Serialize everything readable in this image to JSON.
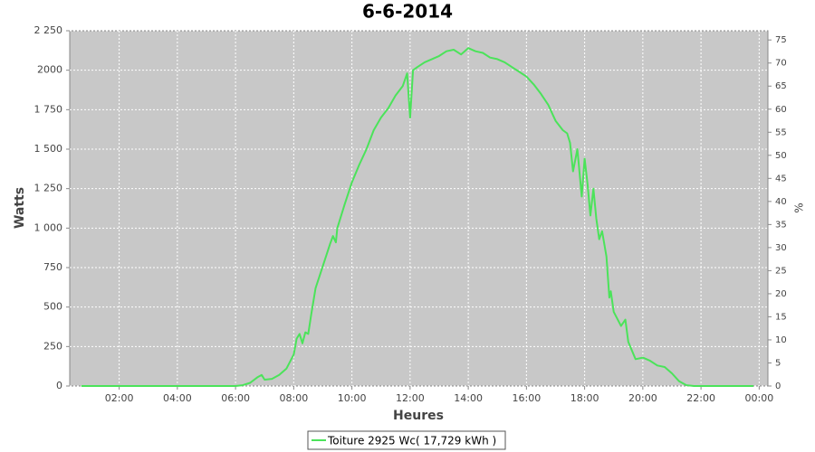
{
  "chart_data": {
    "type": "line",
    "title": "6-6-2014",
    "x_label": "Heures",
    "y_label": "Watts",
    "y2_label": "%",
    "x": [
      0.7,
      5.5,
      6.0,
      6.25,
      6.5,
      6.75,
      6.9,
      7.0,
      7.25,
      7.5,
      7.75,
      8.0,
      8.1,
      8.2,
      8.3,
      8.4,
      8.5,
      8.6,
      8.75,
      9.0,
      9.25,
      9.35,
      9.45,
      9.5,
      9.75,
      10.0,
      10.25,
      10.5,
      10.75,
      11.0,
      11.25,
      11.5,
      11.75,
      11.9,
      12.0,
      12.1,
      12.25,
      12.5,
      12.75,
      13.0,
      13.25,
      13.5,
      13.75,
      14.0,
      14.25,
      14.5,
      14.75,
      15.0,
      15.25,
      15.5,
      15.75,
      16.0,
      16.25,
      16.5,
      16.75,
      17.0,
      17.25,
      17.4,
      17.5,
      17.6,
      17.75,
      17.9,
      18.0,
      18.1,
      18.2,
      18.3,
      18.4,
      18.5,
      18.6,
      18.75,
      18.85,
      18.9,
      19.0,
      19.25,
      19.4,
      19.5,
      19.75,
      20.0,
      20.25,
      20.5,
      20.75,
      21.0,
      21.25,
      21.5,
      21.75,
      23.8
    ],
    "series": [
      {
        "name": "Toiture 2925 Wc( 17,729 kWh )",
        "color": "#4be35a",
        "values": [
          0,
          0,
          0,
          5,
          20,
          55,
          70,
          40,
          45,
          70,
          110,
          200,
          300,
          330,
          270,
          340,
          330,
          450,
          620,
          760,
          900,
          950,
          910,
          1000,
          1150,
          1290,
          1400,
          1500,
          1620,
          1700,
          1760,
          1840,
          1900,
          1980,
          1700,
          2000,
          2020,
          2050,
          2070,
          2090,
          2120,
          2130,
          2100,
          2140,
          2120,
          2110,
          2080,
          2070,
          2050,
          2020,
          1990,
          1960,
          1910,
          1850,
          1780,
          1680,
          1620,
          1600,
          1540,
          1360,
          1500,
          1200,
          1440,
          1280,
          1080,
          1250,
          1060,
          930,
          980,
          820,
          560,
          600,
          470,
          380,
          420,
          280,
          170,
          180,
          160,
          130,
          120,
          80,
          30,
          5,
          0,
          0
        ]
      }
    ],
    "xlim": [
      0.3,
      24.3
    ],
    "xticks": [
      {
        "value": 2,
        "label": "02:00"
      },
      {
        "value": 4,
        "label": "04:00"
      },
      {
        "value": 6,
        "label": "06:00"
      },
      {
        "value": 8,
        "label": "08:00"
      },
      {
        "value": 10,
        "label": "10:00"
      },
      {
        "value": 12,
        "label": "12:00"
      },
      {
        "value": 14,
        "label": "14:00"
      },
      {
        "value": 16,
        "label": "16:00"
      },
      {
        "value": 18,
        "label": "18:00"
      },
      {
        "value": 20,
        "label": "20:00"
      },
      {
        "value": 22,
        "label": "22:00"
      },
      {
        "value": 24,
        "label": "00:00"
      }
    ],
    "ylim": [
      0,
      2250
    ],
    "yticks": [
      0,
      250,
      500,
      750,
      {
        "value": 1000,
        "label": "1 000"
      },
      {
        "value": 1250,
        "label": "1 250"
      },
      {
        "value": 1500,
        "label": "1 500"
      },
      {
        "value": 1750,
        "label": "1 750"
      },
      2000,
      {
        "value": 2250,
        "label": "2 250"
      }
    ],
    "y2lim": [
      0,
      77
    ],
    "y2ticks": [
      0,
      5,
      10,
      15,
      20,
      25,
      30,
      35,
      40,
      45,
      50,
      55,
      60,
      65,
      70,
      75
    ],
    "grid": true,
    "legend": "bottom"
  }
}
